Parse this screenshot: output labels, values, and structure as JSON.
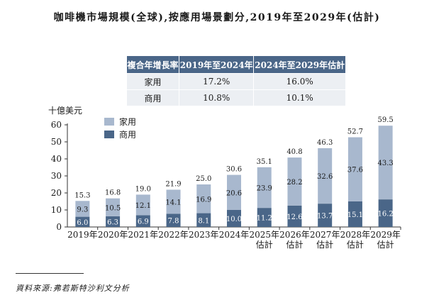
{
  "title": "咖啡機市場規模(全球),按應用場景劃分,2019年至2029年(估計)",
  "cagr_table": {
    "headers": [
      "複合年增長率",
      "2019年至2024年",
      "2024年至2029年估計"
    ],
    "rows": [
      {
        "label": "家用",
        "values": [
          "17.2%",
          "16.0%"
        ]
      },
      {
        "label": "商用",
        "values": [
          "10.8%",
          "10.1%"
        ]
      }
    ]
  },
  "chart_data": {
    "type": "bar",
    "stacked": true,
    "title": "咖啡機市場規模(全球),按應用場景劃分,2019年至2029年(估計)",
    "ylabel": "十億美元",
    "xlabel": "",
    "ylim": [
      0,
      60
    ],
    "yticks": [
      0,
      10,
      20,
      30,
      40,
      50,
      60
    ],
    "categories": [
      [
        "2019年"
      ],
      [
        "2020年"
      ],
      [
        "2021年"
      ],
      [
        "2022年"
      ],
      [
        "2023年"
      ],
      [
        "2024年"
      ],
      [
        "2025年",
        "估計"
      ],
      [
        "2026年",
        "估計"
      ],
      [
        "2027年",
        "估計"
      ],
      [
        "2028年",
        "估計"
      ],
      [
        "2029年",
        "估計"
      ]
    ],
    "series": [
      {
        "name": "商用",
        "color": "#4a6688",
        "values": [
          6.0,
          6.3,
          6.9,
          7.8,
          8.1,
          10.0,
          11.2,
          12.6,
          13.7,
          15.1,
          16.2
        ]
      },
      {
        "name": "家用",
        "color": "#a8b8ce",
        "values": [
          9.3,
          10.5,
          12.1,
          14.1,
          16.9,
          20.6,
          23.9,
          28.2,
          32.6,
          37.6,
          43.3
        ]
      }
    ],
    "totals": [
      15.3,
      16.8,
      19.0,
      21.9,
      25.0,
      30.6,
      35.1,
      40.8,
      46.3,
      52.7,
      59.5
    ],
    "legend": [
      {
        "name": "家用",
        "color": "#a8b8ce"
      },
      {
        "name": "商用",
        "color": "#4a6688"
      }
    ],
    "legend_position": "top-left",
    "grid": false
  },
  "source": "資料來源:弗若斯特沙利文分析"
}
